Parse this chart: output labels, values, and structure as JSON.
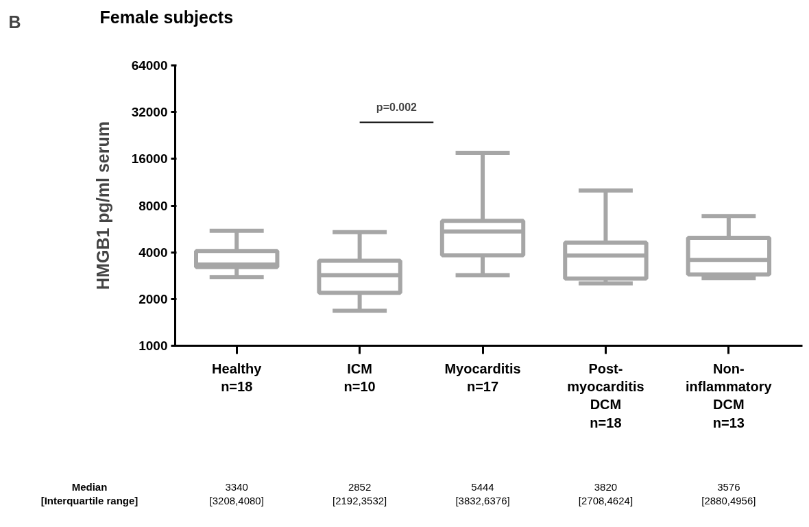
{
  "chart_data": {
    "type": "box",
    "title": "Female subjects",
    "ylabel": "HMGB1 pg/ml serum",
    "categories": [
      "Healthy\nn=18",
      "ICM\nn=10",
      "Myocarditis\nn=17",
      "Post-\nmyocarditis\nDCM\nn=18",
      "Non-\ninflammatory\nDCM\nn=13"
    ],
    "boxes": [
      {
        "low": 2770,
        "q1": 3208,
        "median": 3340,
        "q3": 4080,
        "high": 5500
      },
      {
        "low": 1680,
        "q1": 2192,
        "median": 2852,
        "q3": 3532,
        "high": 5400
      },
      {
        "low": 2850,
        "q1": 3832,
        "median": 5444,
        "q3": 6376,
        "high": 17500
      },
      {
        "low": 2520,
        "q1": 2708,
        "median": 3820,
        "q3": 4624,
        "high": 10000
      },
      {
        "low": 2720,
        "q1": 2880,
        "median": 3576,
        "q3": 4956,
        "high": 6850
      }
    ],
    "color": "#a6a6a6",
    "log": true,
    "ylim": [
      1000,
      64000
    ],
    "yticks": [
      1000,
      2000,
      4000,
      8000,
      16000,
      32000,
      64000
    ],
    "grid": false,
    "annotations": [
      "B",
      "p=0.002",
      "Median\n[Interquartile range]",
      "3340\n[3208,4080]",
      "2852\n[2192,3532]",
      "5444\n[3832,6376]",
      "3820\n[2708,4624]",
      "3576\n[2880,4956]"
    ]
  }
}
